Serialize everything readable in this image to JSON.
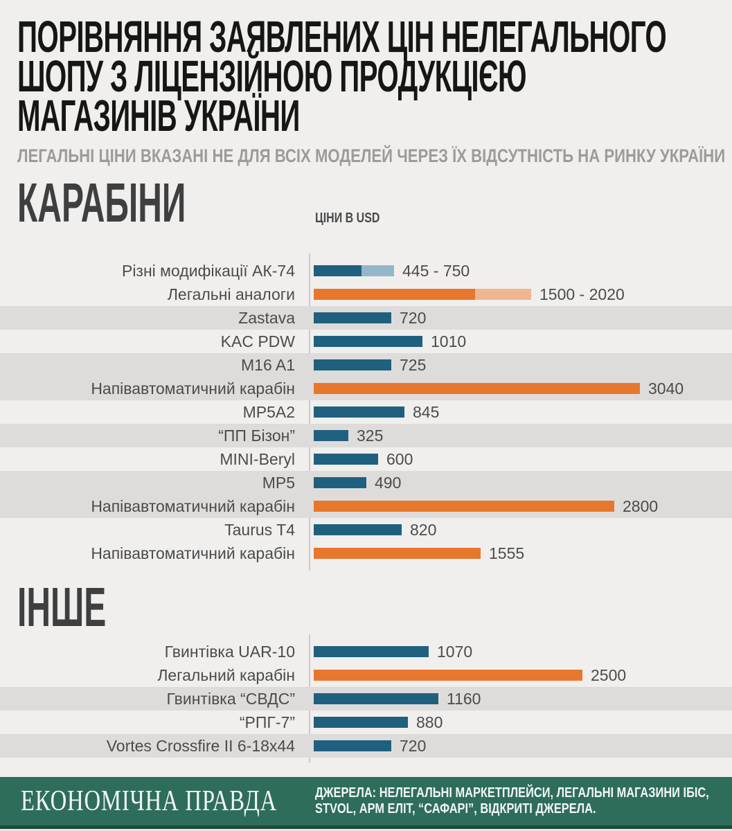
{
  "title_lines": [
    "ПОРІВНЯННЯ ЗАЯВЛЕНИХ ЦІН НЕЛЕГАЛЬНОГО",
    "ШОПУ З ЛІЦЕНЗІЙНОЮ ПРОДУКЦІЄЮ",
    "МАГАЗИНІВ УКРАЇНИ"
  ],
  "subtitle": "ЛЕГАЛЬНІ ЦІНИ ВКАЗАНІ НЕ ДЛЯ ВСІХ МОДЕЛЕЙ ЧЕРЕЗ ЇХ ВІДСУТНІСТЬ НА РИНКУ УКРАЇНИ",
  "units_label": "ЦІНИ В USD",
  "colors": {
    "illegal": "#20607f",
    "illegal_light": "#93b7c9",
    "legal": "#e8772e",
    "legal_light": "#f0b691",
    "band_gray": "#dedcda",
    "footer_green": "#2e6d5b"
  },
  "chart_data": [
    {
      "type": "bar",
      "orientation": "horizontal",
      "section_title": "КАРАБІНИ",
      "units": "USD",
      "value_axis": "x",
      "xlim": [
        0,
        3200
      ],
      "grid": false,
      "series_legend": {
        "illegal": "нелегальний шоп (сині)",
        "legal": "легальна продукція (оранжеві)"
      },
      "rows": [
        {
          "label": "Різні модифікації АК-74",
          "min": 445,
          "max": 750,
          "display": "445 - 750",
          "series": "illegal",
          "band": false
        },
        {
          "label": "Легальні аналоги",
          "min": 1500,
          "max": 2020,
          "display": "1500 - 2020",
          "series": "legal",
          "band": false
        },
        {
          "label": "Zastava",
          "value": 720,
          "display": "720",
          "series": "illegal",
          "band": true
        },
        {
          "label": "KAC PDW",
          "value": 1010,
          "display": "1010",
          "series": "illegal",
          "band": false
        },
        {
          "label": "M16 A1",
          "value": 725,
          "display": "725",
          "series": "illegal",
          "band": true
        },
        {
          "label": "Напівавтоматичний карабін",
          "value": 3040,
          "display": "3040",
          "series": "legal",
          "band": true
        },
        {
          "label": "MP5A2",
          "value": 845,
          "display": "845",
          "series": "illegal",
          "band": false
        },
        {
          "label": "“ПП Бізон”",
          "value": 325,
          "display": "325",
          "series": "illegal",
          "band": true
        },
        {
          "label": "MINI-Beryl",
          "value": 600,
          "display": "600",
          "series": "illegal",
          "band": false
        },
        {
          "label": "MP5",
          "value": 490,
          "display": "490",
          "series": "illegal",
          "band": true
        },
        {
          "label": "Напівавтоматичний карабін",
          "value": 2800,
          "display": "2800",
          "series": "legal",
          "band": true
        },
        {
          "label": "Taurus T4",
          "value": 820,
          "display": "820",
          "series": "illegal",
          "band": false
        },
        {
          "label": "Напівавтоматичний карабін",
          "value": 1555,
          "display": "1555",
          "series": "legal",
          "band": false
        }
      ]
    },
    {
      "type": "bar",
      "orientation": "horizontal",
      "section_title": "ІНШЕ",
      "units": "USD",
      "value_axis": "x",
      "xlim": [
        0,
        3200
      ],
      "grid": false,
      "rows": [
        {
          "label": "Гвинтівка UAR-10",
          "value": 1070,
          "display": "1070",
          "series": "illegal",
          "band": false
        },
        {
          "label": "Легальний карабін",
          "value": 2500,
          "display": "2500",
          "series": "legal",
          "band": false
        },
        {
          "label": "Гвинтівка “СВДС”",
          "value": 1160,
          "display": "1160",
          "series": "illegal",
          "band": true
        },
        {
          "label": "“РПГ-7”",
          "value": 880,
          "display": "880",
          "series": "illegal",
          "band": false
        },
        {
          "label": "Vortes Crossfire II 6-18x44",
          "value": 720,
          "display": "720",
          "series": "illegal",
          "band": true
        }
      ]
    }
  ],
  "footer": {
    "logo": "ЕКОНОМІЧНА ПРАВДА",
    "sources_line1": "ДЖЕРЕЛА: НЕЛЕГАЛЬНІ МАРКЕТПЛЕЙСИ, ЛЕГАЛЬНІ МАГАЗИНИ ІБІС,",
    "sources_line2": "STVOL, АРМ ЕЛІТ, “САФАРІ”, ВІДКРИТІ ДЖЕРЕЛА."
  }
}
